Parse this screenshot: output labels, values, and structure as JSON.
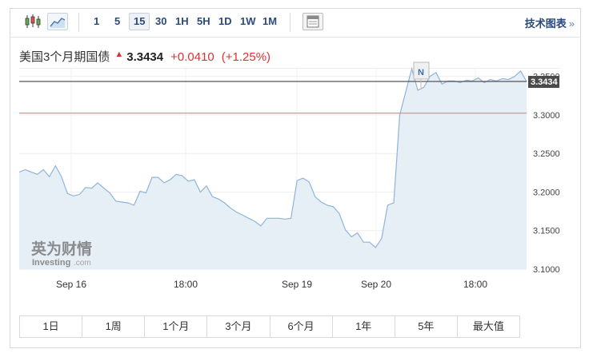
{
  "toolbar": {
    "icons": [
      "candlestick-icon",
      "line-chart-icon",
      "table-icon"
    ],
    "timeframes": [
      "1",
      "5",
      "15",
      "30",
      "1H",
      "5H",
      "1D",
      "1W",
      "1M"
    ],
    "active_timeframe": "15",
    "tech_label": "技术图表",
    "tech_arrow": "»"
  },
  "quote": {
    "name": "美国3个月期国债",
    "arrow": "▲",
    "last": "3.3434",
    "change": "+0.0410",
    "change_pct": "(+1.25%)"
  },
  "colors": {
    "up": "#e03030",
    "line": "#8fb4d9",
    "area": "#e6eef6",
    "current_line": "#555555",
    "ref_line": "#e28b96"
  },
  "chart_data": {
    "type": "area",
    "yticks": [
      "3.1000",
      "3.1500",
      "3.2000",
      "3.2500",
      "3.3000",
      "3.3500"
    ],
    "xlabels": [
      "Sep 16",
      "18:00",
      "Sep 19",
      "Sep 20",
      "18:00"
    ],
    "ylim": [
      3.1,
      3.36
    ],
    "current_value": 3.3434,
    "current_label": "3.3434",
    "reference_value": 3.3024,
    "annotation": "N",
    "grid": true,
    "values": [
      3.226,
      3.229,
      3.226,
      3.223,
      3.229,
      3.22,
      3.234,
      3.22,
      3.198,
      3.195,
      3.197,
      3.206,
      3.205,
      3.212,
      3.205,
      3.199,
      3.188,
      3.187,
      3.186,
      3.183,
      3.201,
      3.199,
      3.219,
      3.219,
      3.212,
      3.216,
      3.223,
      3.221,
      3.214,
      3.216,
      3.2,
      3.208,
      3.194,
      3.191,
      3.186,
      3.179,
      3.174,
      3.17,
      3.166,
      3.162,
      3.156,
      3.166,
      3.166,
      3.166,
      3.165,
      3.166,
      3.215,
      3.218,
      3.213,
      3.194,
      3.187,
      3.183,
      3.181,
      3.172,
      3.151,
      3.142,
      3.147,
      3.135,
      3.135,
      3.128,
      3.14,
      3.183,
      3.186,
      3.3,
      3.33,
      3.36,
      3.332,
      3.336,
      3.35,
      3.355,
      3.34,
      3.344,
      3.344,
      3.342,
      3.345,
      3.344,
      3.348,
      3.342,
      3.346,
      3.344,
      3.347,
      3.346,
      3.35,
      3.357,
      3.3434
    ]
  },
  "logo": {
    "text_cn": "英为财情",
    "text_en": "Investing",
    "text_com": ".com"
  },
  "ranges": [
    "1日",
    "1周",
    "1个月",
    "3个月",
    "6个月",
    "1年",
    "5年",
    "最大值"
  ]
}
